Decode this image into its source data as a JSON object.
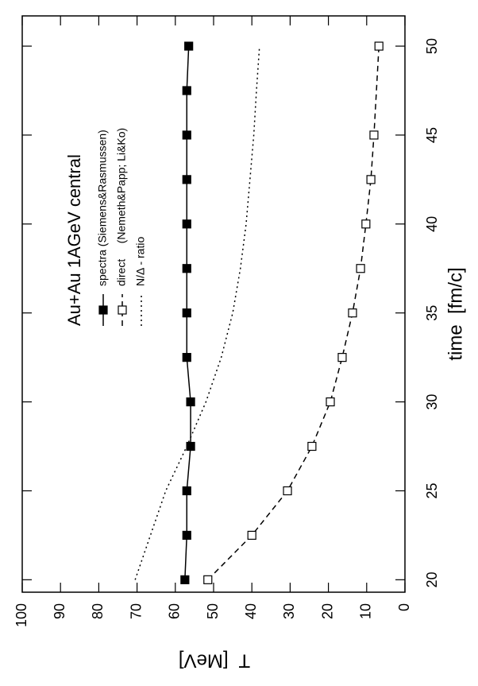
{
  "chart_data": {
    "type": "line",
    "annotation": "Au+Au 1AGeV central",
    "xlabel": "time  [fm/c]",
    "ylabel": "T  [MeV]",
    "xlim": [
      19.3,
      51.7
    ],
    "ylim": [
      0,
      100
    ],
    "xticks": [
      20,
      25,
      30,
      35,
      40,
      45,
      50
    ],
    "yticks": [
      0,
      10,
      20,
      30,
      40,
      50,
      60,
      70,
      80,
      90,
      100
    ],
    "series": [
      {
        "name": "spectra (Siemens&Rasmussen)",
        "color": "#000000",
        "dash": "solid",
        "marker": "filled",
        "x": [
          20,
          22.5,
          25,
          27.5,
          30,
          32.5,
          35,
          37.5,
          40,
          42.5,
          45,
          47.5,
          50
        ],
        "values": [
          57.5,
          57,
          57,
          56,
          56,
          57,
          57,
          57,
          57,
          57,
          57,
          57,
          56.5
        ]
      },
      {
        "name": "direct     (Nemeth&Papp; Li&Ko)",
        "color": "#000000",
        "dash": "dashed",
        "marker": "open",
        "x": [
          20,
          22.5,
          25,
          27.5,
          30,
          32.5,
          35,
          37.5,
          40,
          42.5,
          45,
          50
        ],
        "values": [
          51.5,
          40,
          30.7,
          24.3,
          19.5,
          16.4,
          13.7,
          11.6,
          10.2,
          8.9,
          8.1,
          6.8
        ]
      },
      {
        "name": "N/Δ - ratio",
        "color": "#000000",
        "dash": "dotted",
        "marker": "none",
        "x": [
          20,
          22.5,
          25,
          27.5,
          30,
          32.5,
          35,
          37.5,
          40,
          42.5,
          45,
          47.5,
          50
        ],
        "values": [
          70.5,
          66.5,
          62.5,
          57,
          52,
          48,
          45,
          43,
          41.5,
          40.5,
          39.5,
          38.8,
          38
        ]
      }
    ]
  }
}
